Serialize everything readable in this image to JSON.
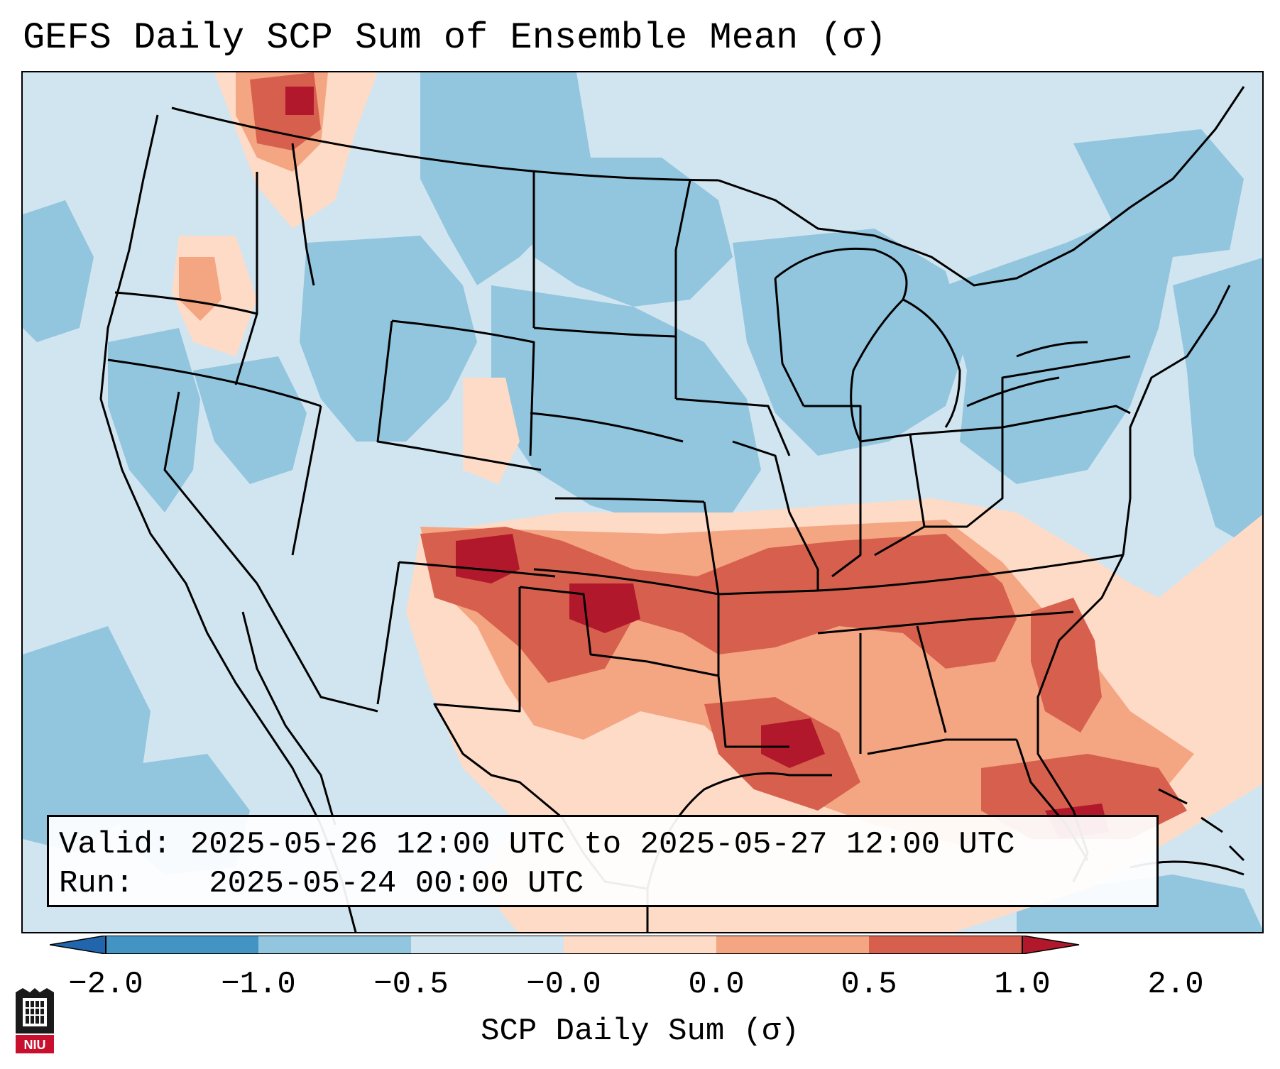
{
  "title": "GEFS Daily SCP Sum of Ensemble Mean (σ)",
  "info": {
    "valid_label": "Valid:",
    "valid_value": "2025-05-26 12:00 UTC to 2025-05-27 12:00 UTC",
    "run_label": "Run:",
    "run_value": "2025-05-24 00:00 UTC"
  },
  "colorbar": {
    "label": "SCP Daily Sum (σ)",
    "ticks": [
      "−2.0",
      "−1.0",
      "−0.5",
      "−0.0",
      "0.0",
      "0.5",
      "1.0",
      "2.0"
    ],
    "colors": [
      "#4393c3",
      "#92c5de",
      "#d1e5f0",
      "#fddbc7",
      "#f4a582",
      "#d6604d"
    ],
    "under_color": "#2166ac",
    "over_color": "#b2182b"
  },
  "legend_scale": {
    "lt_-1.0": "#92c5de",
    "-1.0_to_-0.5": "#92c5de",
    "-0.5_to_0.0": "#d1e5f0",
    "0.0_to_0.5": "#fddbc7",
    "0.5_to_1.0": "#f4a582",
    "1.0_to_2.0": "#d6604d",
    "gt_2.0": "#b2182b"
  },
  "logo_text": "NIU"
}
